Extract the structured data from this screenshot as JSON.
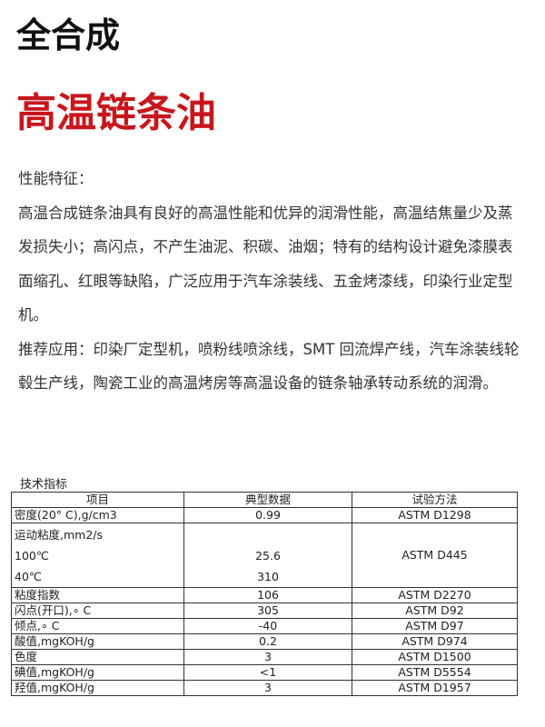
{
  "title": "全合成",
  "subtitle": "高温链条油",
  "sections": {
    "features_label": "性能特征：",
    "features_text": "高温合成链条油具有良好的高温性能和优异的润滑性能，高温结焦量少及蒸发损失小；高闪点，不产生油泥、积碳、油烟；特有的结构设计避免漆膜表面缩孔、红眼等缺陷，广泛应用于汽车涂装线、五金烤漆线，印染行业定型机。",
    "applications_text": "推荐应用：印染厂定型机，喷粉线喷涂线，SMT 回流焊产线，汽车涂装线轮毂生产线，陶瓷工业的高温烤房等高温设备的链条轴承转动系统的润滑。"
  },
  "spec": {
    "label": "技术指标",
    "headers": [
      "项目",
      "典型数据",
      "试验方法"
    ],
    "rows": [
      {
        "item": "密度(20° C),g/cm3",
        "value": "0.99",
        "method": "ASTM D1298"
      },
      {
        "item": "运动粘度,mm2/s",
        "sub": [
          "100℃",
          "40℃"
        ],
        "values": [
          "25.6",
          "310"
        ],
        "method": "ASTM D445"
      },
      {
        "item": "粘度指数",
        "value": "106",
        "method": "ASTM D2270"
      },
      {
        "item": "闪点(开口),∘ C",
        "value": "305",
        "method": "ASTM D92"
      },
      {
        "item": "倾点,∘ C",
        "value": "-40",
        "method": "ASTM D97"
      },
      {
        "item": "酸值,mgKOH/g",
        "value": "0.2",
        "method": "ASTM D974"
      },
      {
        "item": "色度",
        "value": "3",
        "method": "ASTM D1500"
      },
      {
        "item": "碘值,mgKOH/g",
        "value": "<1",
        "method": "ASTM D5554"
      },
      {
        "item": "羟值,mgKOH/g",
        "value": "3",
        "method": "ASTM D1957"
      }
    ]
  }
}
